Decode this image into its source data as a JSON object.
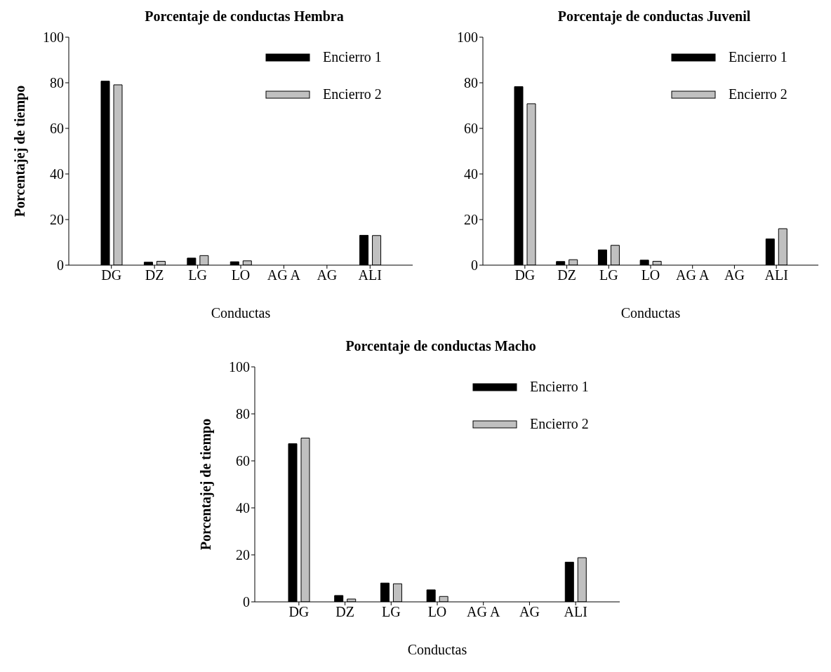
{
  "chart_data": [
    {
      "type": "bar",
      "title": "Porcentaje de conductas Hembra",
      "xlabel": "Conductas",
      "ylabel": "Porcentajej de tiempo",
      "categories": [
        "DG",
        "DZ",
        "LG",
        "LO",
        "AG A",
        "AG",
        "ALI"
      ],
      "series": [
        {
          "name": "Encierro 1",
          "color": "#000000",
          "values": [
            80.7,
            1.3,
            3.1,
            1.5,
            0,
            0,
            13.1
          ]
        },
        {
          "name": "Encierro 2",
          "color": "#c0c0c0",
          "values": [
            79.1,
            1.7,
            4.2,
            1.9,
            0,
            0,
            13.0
          ]
        }
      ],
      "ylim": [
        0,
        100
      ],
      "yticks": [
        0,
        20,
        40,
        60,
        80,
        100
      ],
      "legend": "top right"
    },
    {
      "type": "bar",
      "title": "Porcentaje de conductas Juvenil",
      "xlabel": "Conductas",
      "categories": [
        "DG",
        "DZ",
        "LG",
        "LO",
        "AG A",
        "AG",
        "ALI"
      ],
      "series": [
        {
          "name": "Encierro 1",
          "color": "#000000",
          "values": [
            78.3,
            1.6,
            6.7,
            2.2,
            0,
            0,
            11.5
          ]
        },
        {
          "name": "Encierro 2",
          "color": "#c0c0c0",
          "values": [
            70.8,
            2.4,
            8.7,
            1.7,
            0,
            0,
            16.0
          ]
        }
      ],
      "ylim": [
        0,
        100
      ],
      "yticks": [
        0,
        20,
        40,
        60,
        80,
        100
      ],
      "legend": "top right"
    },
    {
      "type": "bar",
      "title": "Porcentaje de conductas Macho",
      "xlabel": "Conductas",
      "ylabel": "Porcentajej de tiempo",
      "categories": [
        "DG",
        "DZ",
        "LG",
        "LO",
        "AG A",
        "AG",
        "ALI"
      ],
      "series": [
        {
          "name": "Encierro 1",
          "color": "#000000",
          "values": [
            67.3,
            2.7,
            8.0,
            5.1,
            0,
            0,
            16.9
          ]
        },
        {
          "name": "Encierro 2",
          "color": "#c0c0c0",
          "values": [
            69.7,
            1.2,
            7.7,
            2.3,
            0,
            0,
            18.8
          ]
        }
      ],
      "ylim": [
        0,
        100
      ],
      "yticks": [
        0,
        20,
        40,
        60,
        80,
        100
      ],
      "legend": "top right"
    }
  ]
}
